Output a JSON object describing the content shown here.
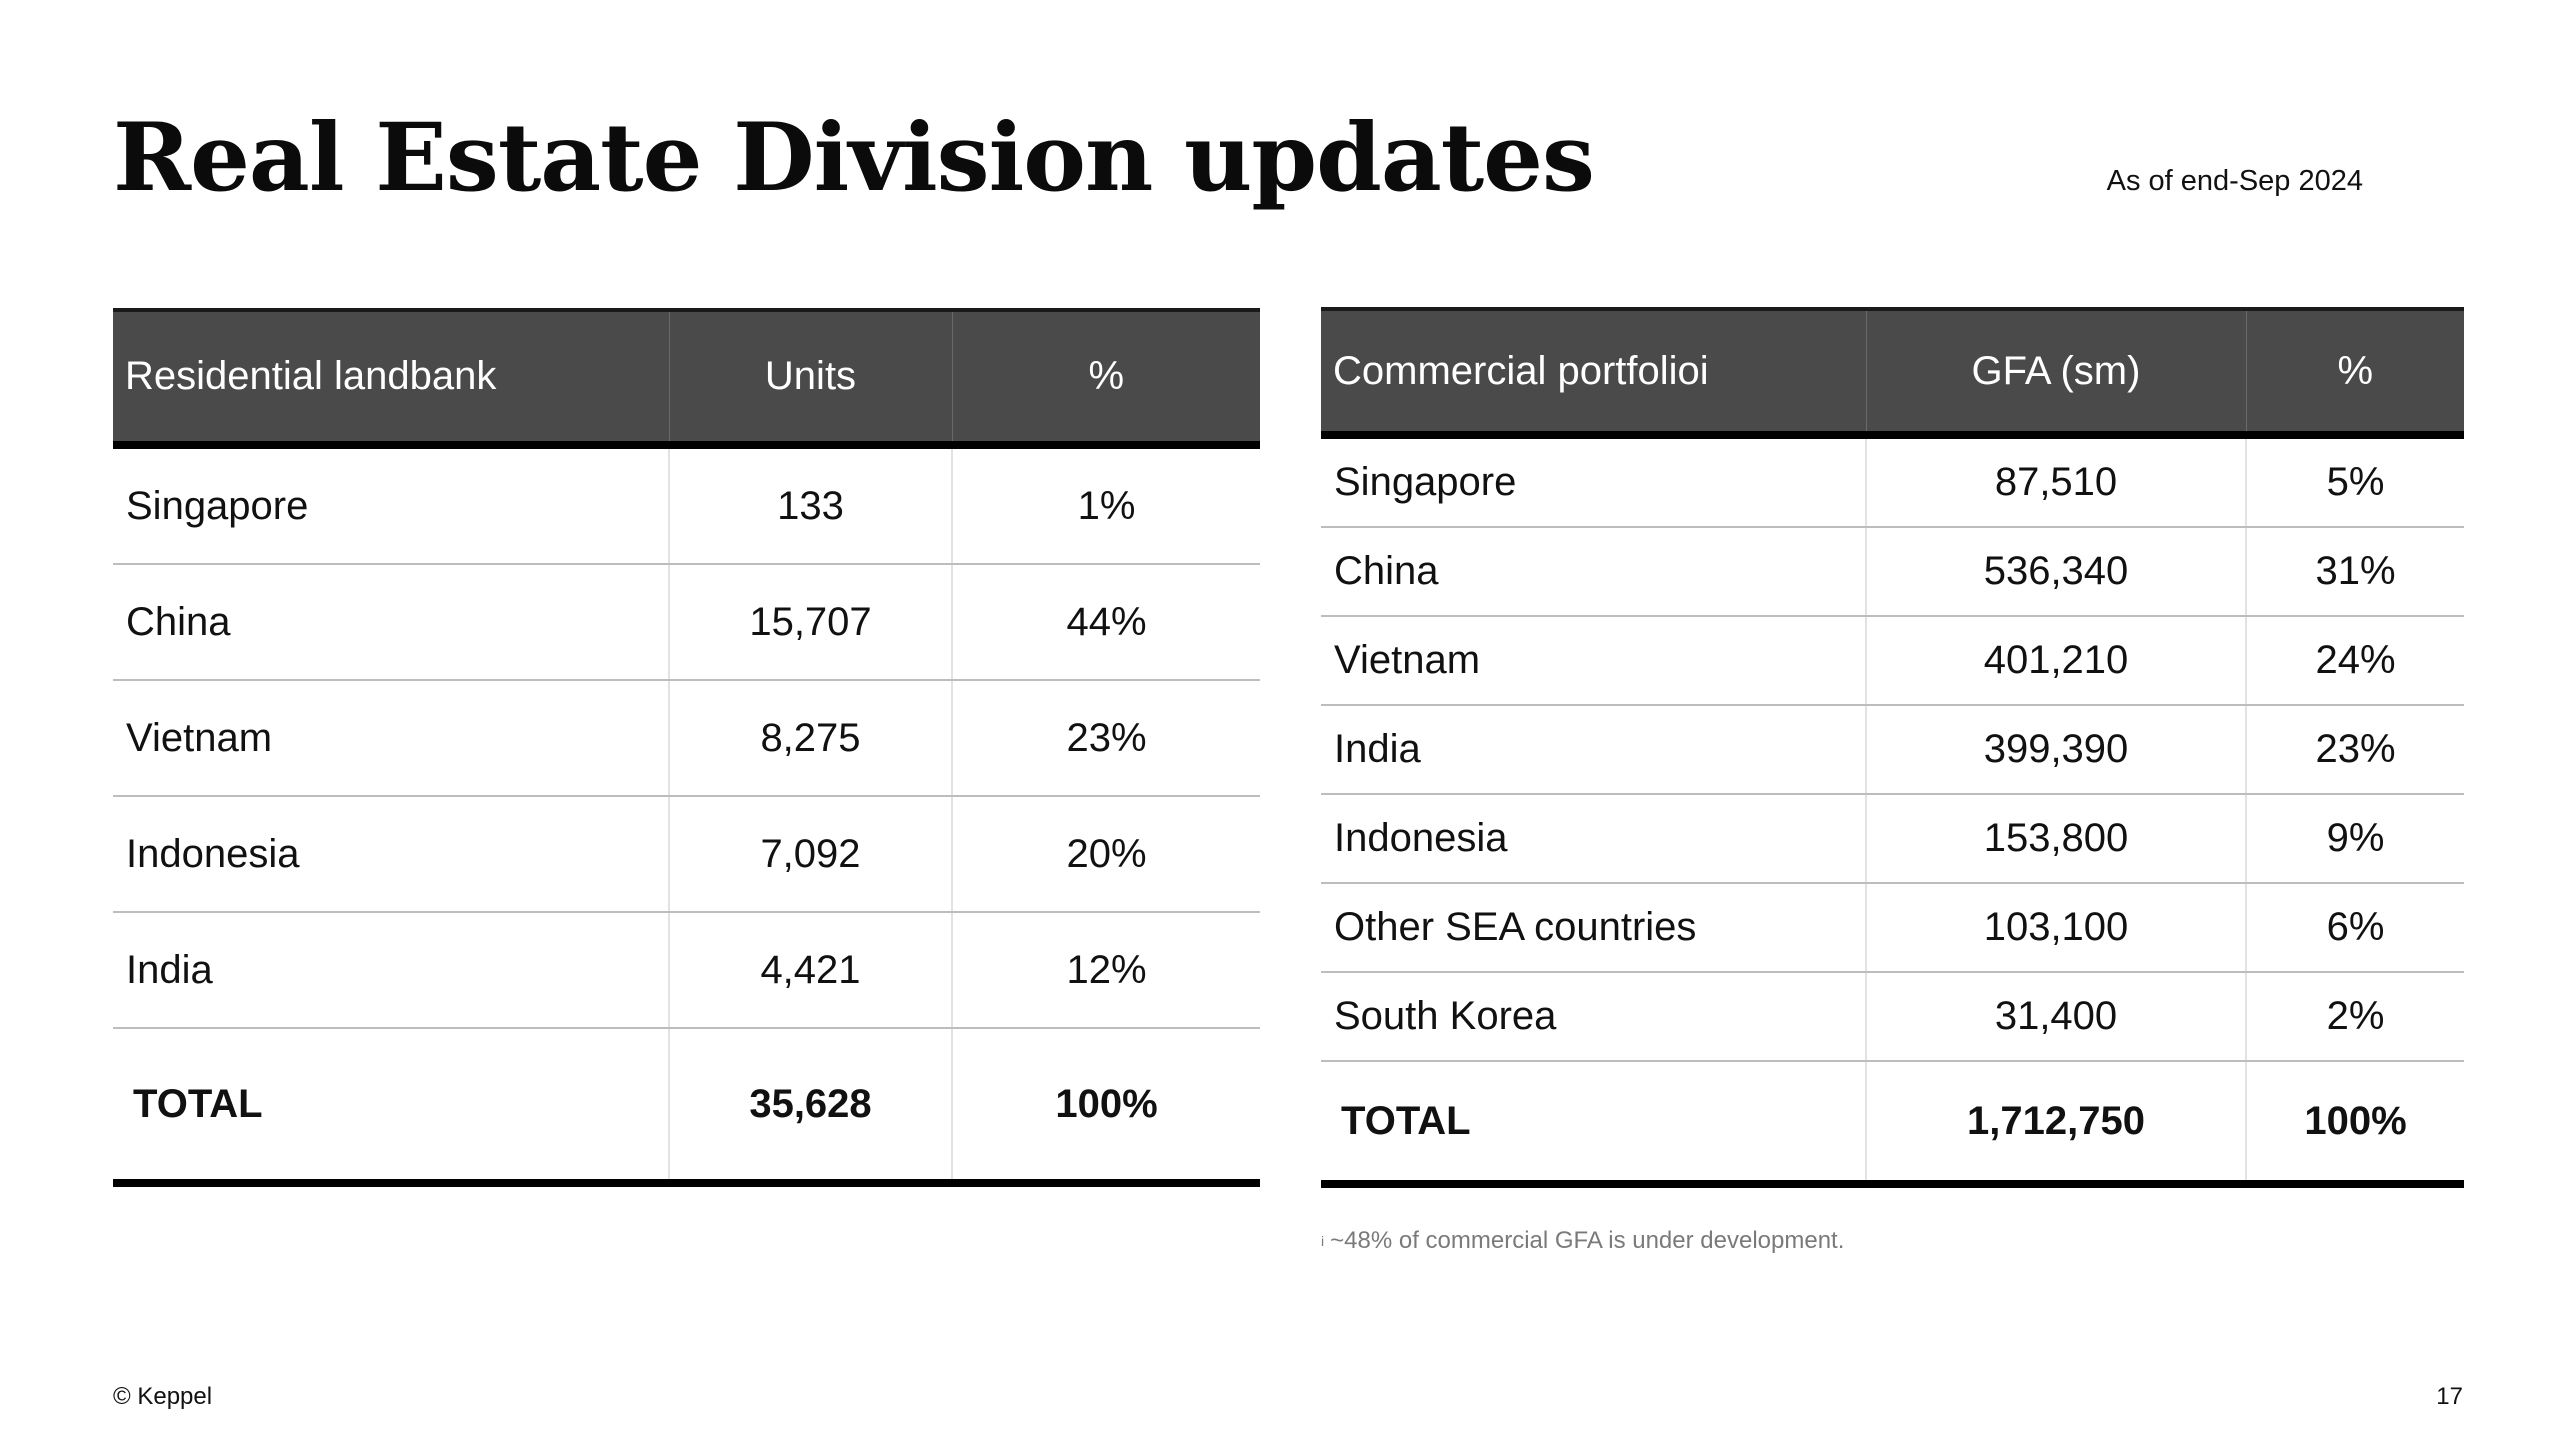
{
  "page": {
    "title": "Real Estate Division updates",
    "as_of": "As of end-Sep 2024"
  },
  "residential": {
    "headers": [
      "Residential landbank",
      "Units",
      "%"
    ],
    "rows": [
      {
        "name": "Singapore",
        "units": "133",
        "pct": "1%"
      },
      {
        "name": "China",
        "units": "15,707",
        "pct": "44%"
      },
      {
        "name": "Vietnam",
        "units": "8,275",
        "pct": "23%"
      },
      {
        "name": "Indonesia",
        "units": "7,092",
        "pct": "20%"
      },
      {
        "name": "India",
        "units": "4,421",
        "pct": "12%"
      }
    ],
    "total": {
      "name": "TOTAL",
      "units": "35,628",
      "pct": "100%"
    }
  },
  "commercial": {
    "headers": [
      "Commercial portfolio",
      "GFA (sm)",
      "%"
    ],
    "header_marker": "i",
    "rows": [
      {
        "name": "Singapore",
        "gfa": "87,510",
        "pct": "5%"
      },
      {
        "name": "China",
        "gfa": "536,340",
        "pct": "31%"
      },
      {
        "name": "Vietnam",
        "gfa": "401,210",
        "pct": "24%"
      },
      {
        "name": "India",
        "gfa": "399,390",
        "pct": "23%"
      },
      {
        "name": "Indonesia",
        "gfa": "153,800",
        "pct": "9%"
      },
      {
        "name": "Other SEA countries",
        "gfa": "103,100",
        "pct": "6%"
      },
      {
        "name": "South Korea",
        "gfa": "31,400",
        "pct": "2%"
      }
    ],
    "total": {
      "name": "TOTAL",
      "gfa": "1,712,750",
      "pct": "100%"
    }
  },
  "footnote": {
    "marker": "i",
    "text": "~48% of commercial GFA is under development."
  },
  "footer": {
    "copyright": "© Keppel",
    "page_number": "17"
  }
}
